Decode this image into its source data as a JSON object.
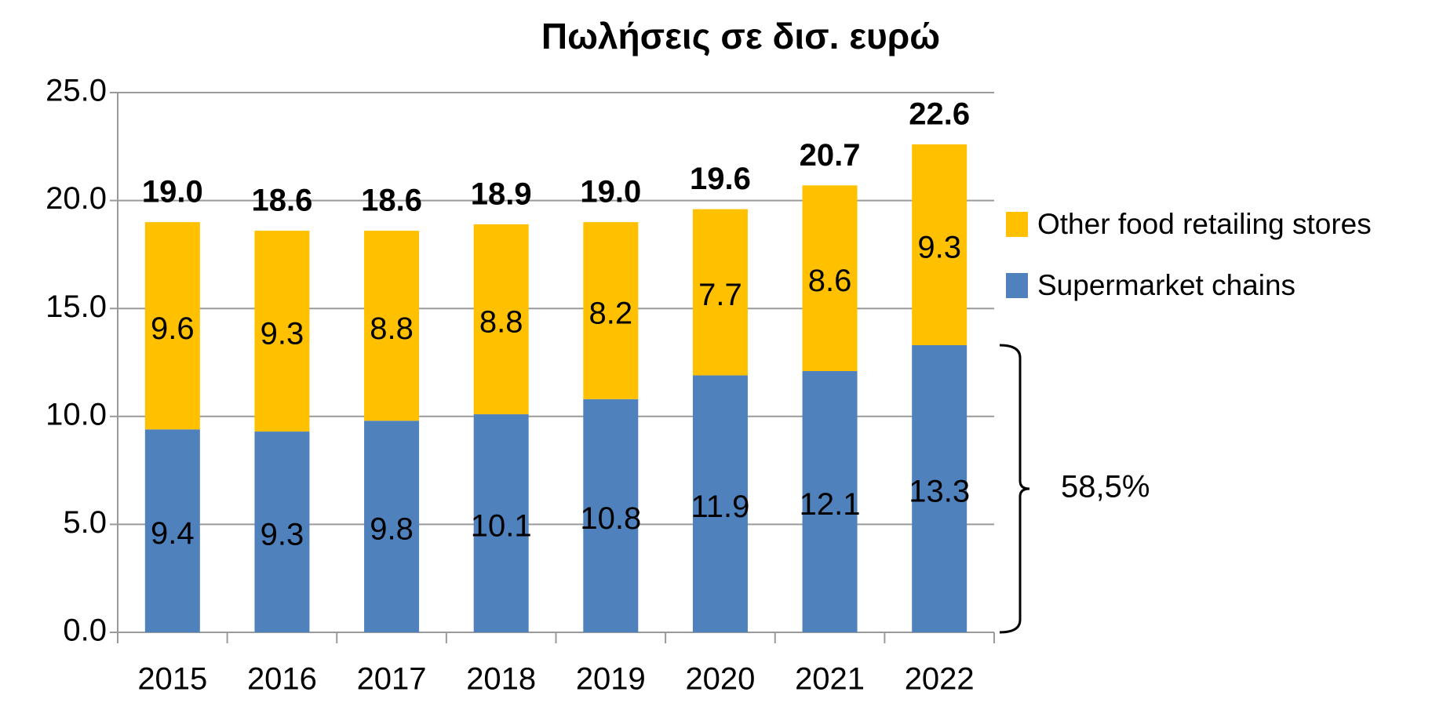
{
  "chart_data": {
    "type": "stacked_bar",
    "title": "Πωλήσεις σε δισ. ευρώ",
    "categories": [
      "2015",
      "2016",
      "2017",
      "2018",
      "2019",
      "2020",
      "2021",
      "2022"
    ],
    "series": [
      {
        "name": "Supermarket chains",
        "color": "#4f81bd",
        "values": [
          9.4,
          9.3,
          9.8,
          10.1,
          10.8,
          11.9,
          12.1,
          13.3
        ]
      },
      {
        "name": "Other food retailing stores",
        "color": "#ffc000",
        "values": [
          9.6,
          9.3,
          8.8,
          8.8,
          8.2,
          7.7,
          8.6,
          9.3
        ]
      }
    ],
    "totals": [
      19,
      18.6,
      18.6,
      18.9,
      19,
      19.6,
      20.7,
      22.6
    ],
    "total_labels": [
      "19.0",
      "18.6",
      "18.6",
      "18.9",
      "19.0",
      "19.6",
      "20.7",
      "22.6"
    ],
    "annotation": "58,5%",
    "ylim": [
      0,
      25
    ],
    "yticks": [
      {
        "value": 0,
        "label": "0.0"
      },
      {
        "value": 5,
        "label": "5.0"
      },
      {
        "value": 10,
        "label": "10.0"
      },
      {
        "value": 15,
        "label": "15.0"
      },
      {
        "value": 20,
        "label": "20.0"
      },
      {
        "value": 25,
        "label": "25.0"
      }
    ],
    "grid": true,
    "legend": "right"
  }
}
